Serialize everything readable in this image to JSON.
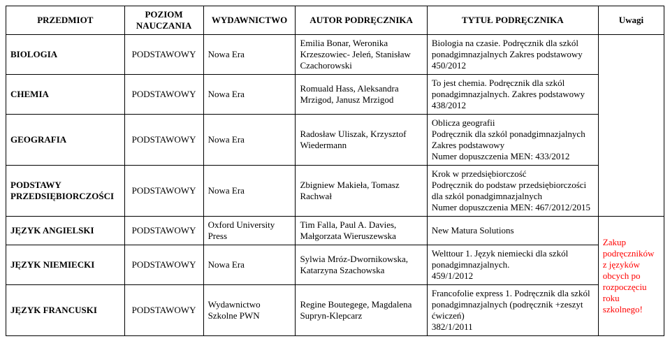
{
  "headers": {
    "subject": "PRZEDMIOT",
    "level": "POZIOM NAUCZANIA",
    "publisher": "WYDAWNICTWO",
    "author": "AUTOR PODRĘCZNIKA",
    "title": "TYTUŁ PODRĘCZNIKA",
    "notes": "Uwagi"
  },
  "rows": [
    {
      "subject": "BIOLOGIA",
      "level": "PODSTAWOWY",
      "publisher": "Nowa Era",
      "author": "Emilia Bonar, Weronika Krzeszowiec- Jeleń, Stanisław Czachorowski",
      "title": "Biologia na czasie. Podręcznik dla szkól ponadgimnazjalnych Zakres podstawowy 450/2012"
    },
    {
      "subject": "CHEMIA",
      "level": "PODSTAWOWY",
      "publisher": "Nowa Era",
      "author": "Romuald Hass, Aleksandra Mrzigod, Janusz Mrzigod",
      "title": "To jest chemia. Podręcznik dla szkól ponadgimnazjalnych. Zakres podstawowy\n438/2012"
    },
    {
      "subject": "GEOGRAFIA",
      "level": "PODSTAWOWY",
      "publisher": "Nowa Era",
      "author": "Radosław Uliszak, Krzysztof Wiedermann",
      "title": "Oblicza geografii\nPodręcznik dla szkól ponadgimnazjalnych\nZakres podstawowy\nNumer dopuszczenia MEN: 433/2012"
    },
    {
      "subject": "PODSTAWY PRZEDSIĘBIORCZOŚCI",
      "level": "PODSTAWOWY",
      "publisher": "Nowa Era",
      "author": "Zbigniew Makieła, Tomasz Rachwał",
      "title": "Krok w przedsiębiorczość\nPodręcznik do podstaw przedsiębiorczości dla szkól ponadgimnazjalnych\nNumer dopuszczenia MEN: 467/2012/2015"
    },
    {
      "subject": "JĘZYK ANGIELSKI",
      "level": "PODSTAWOWY",
      "publisher": "Oxford University Press",
      "author": "Tim Falla, Paul A. Davies, Małgorzata Wieruszewska",
      "title": "New Matura Solutions"
    },
    {
      "subject": "JĘZYK NIEMIECKI",
      "level": "PODSTAWOWY",
      "publisher": "Nowa Era",
      "author": "Sylwia Mróz-Dwornikowska, Katarzyna Szachowska",
      "title": "Welttour 1. Język niemiecki dla szkól ponadgimnazjalnych.\n459/1/2012"
    },
    {
      "subject": "JĘZYK FRANCUSKI",
      "level": "PODSTAWOWY",
      "publisher": "Wydawnictwo Szkolne PWN",
      "author": "Regine Boutegege, Magdalena Supryn-Klepcarz",
      "title": "Francofolie express 1. Podręcznik dla szkól ponadgimnazjalnych (podręcznik +zeszyt ćwiczeń)\n382/1/2011"
    }
  ],
  "notes_text": "Zakup podręczników z języków obcych po rozpoczęciu roku szkolnego!",
  "style": {
    "font_family": "Times New Roman",
    "base_fontsize_pt": 10,
    "header_bold": true,
    "border_color": "#000000",
    "background_color": "#ffffff",
    "notes_color": "#ff0000",
    "column_widths_percent": [
      18,
      12,
      14,
      20,
      26,
      10
    ],
    "table_type": "table"
  }
}
